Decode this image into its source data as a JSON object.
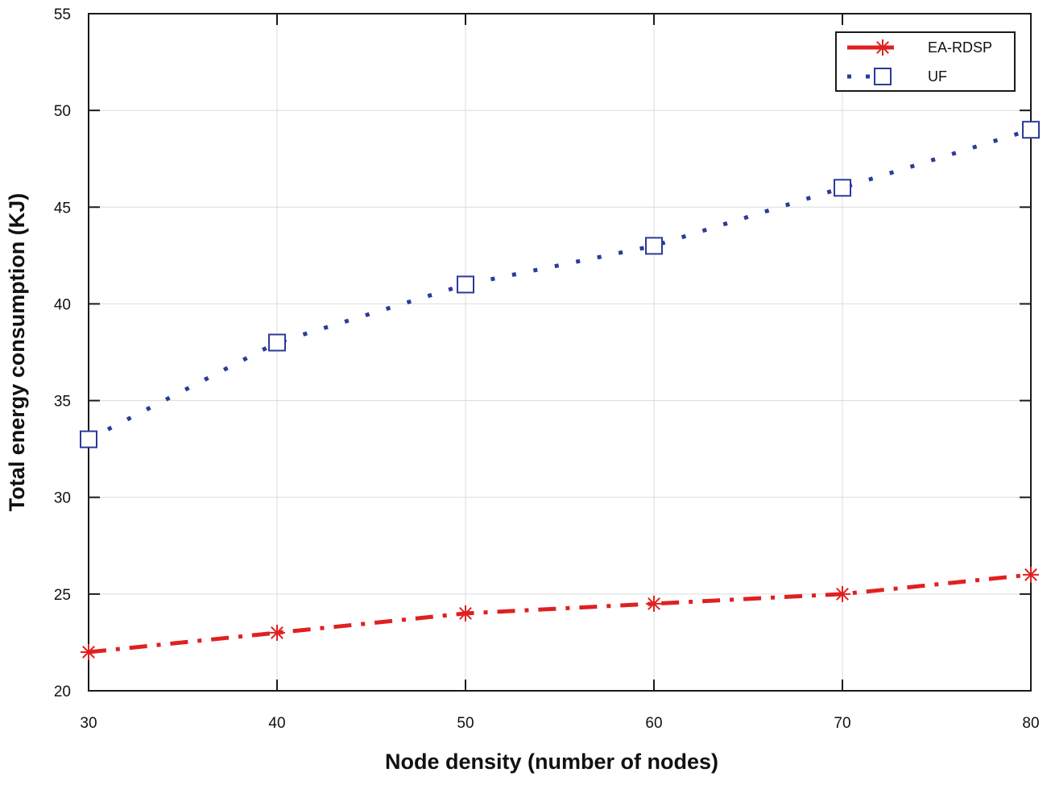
{
  "chart_data": {
    "type": "line",
    "title": "",
    "xlabel": "Node density (number of nodes)",
    "ylabel": "Total energy consumption (KJ)",
    "xlim": [
      30,
      80
    ],
    "ylim": [
      20,
      55
    ],
    "xticks": [
      30,
      40,
      50,
      60,
      70,
      80
    ],
    "yticks": [
      20,
      25,
      30,
      35,
      40,
      45,
      50,
      55
    ],
    "grid": true,
    "legend_position": "top-right",
    "x": [
      30,
      40,
      50,
      60,
      70,
      80
    ],
    "series": [
      {
        "name": "EA-RDSP",
        "values": [
          22,
          23,
          24,
          24.5,
          25,
          26
        ],
        "color": "#e02020",
        "line_style": "dash-dot",
        "marker": "asterisk"
      },
      {
        "name": "UF",
        "values": [
          33,
          38,
          41,
          43,
          46,
          49
        ],
        "color": "#2b3a9c",
        "line_style": "dotted",
        "marker": "square"
      }
    ]
  }
}
